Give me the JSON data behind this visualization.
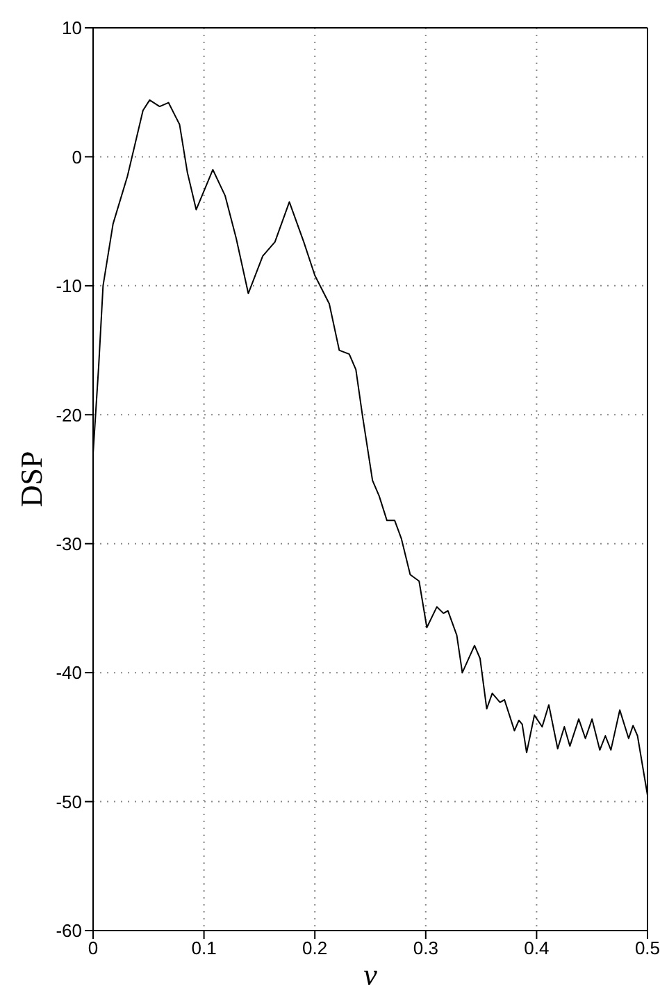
{
  "chart_data": {
    "type": "line",
    "xlabel": "ν",
    "ylabel": "DSP",
    "x": [
      0,
      0.005,
      0.009,
      0.018,
      0.031,
      0.045,
      0.051,
      0.06,
      0.068,
      0.078,
      0.085,
      0.093,
      0.108,
      0.119,
      0.129,
      0.14,
      0.153,
      0.164,
      0.177,
      0.19,
      0.2,
      0.213,
      0.222,
      0.231,
      0.237,
      0.243,
      0.252,
      0.258,
      0.265,
      0.272,
      0.278,
      0.286,
      0.294,
      0.301,
      0.31,
      0.316,
      0.32,
      0.328,
      0.333,
      0.344,
      0.349,
      0.355,
      0.36,
      0.367,
      0.371,
      0.38,
      0.384,
      0.387,
      0.391,
      0.398,
      0.405,
      0.411,
      0.419,
      0.425,
      0.43,
      0.438,
      0.444,
      0.45,
      0.457,
      0.462,
      0.467,
      0.475,
      0.483,
      0.487,
      0.491,
      0.5
    ],
    "series": [
      {
        "color": "#000000",
        "values": [
          -23,
          -16.3,
          -10,
          -5.2,
          -1.5,
          3.6,
          4.4,
          3.9,
          4.2,
          2.5,
          -1.2,
          -4.1,
          -1,
          -3,
          -6.3,
          -10.6,
          -7.7,
          -6.6,
          -3.5,
          -6.6,
          -9.2,
          -11.4,
          -15,
          -15.3,
          -16.5,
          -20.1,
          -25.1,
          -26.3,
          -28.2,
          -28.2,
          -29.6,
          -32.4,
          -32.9,
          -36.5,
          -34.9,
          -35.4,
          -35.2,
          -37.1,
          -40,
          -37.9,
          -38.9,
          -42.8,
          -41.6,
          -42.3,
          -42.1,
          -44.5,
          -43.7,
          -44,
          -46.2,
          -43.3,
          -44.2,
          -42.5,
          -45.9,
          -44.2,
          -45.7,
          -43.6,
          -45.1,
          -43.6,
          -46,
          -44.9,
          -46,
          -42.9,
          -45.1,
          -44.1,
          -44.9,
          -49.5
        ]
      }
    ],
    "xlim": [
      0,
      0.5
    ],
    "xticks": [
      0,
      0.1,
      0.2,
      0.3,
      0.4,
      0.5
    ],
    "ylim": [
      -60,
      10
    ],
    "yticks": [
      -60,
      -50,
      -40,
      -30,
      -20,
      -10,
      0,
      10
    ],
    "grid": true,
    "marker": "none",
    "line_style": "solid",
    "legend": false
  }
}
